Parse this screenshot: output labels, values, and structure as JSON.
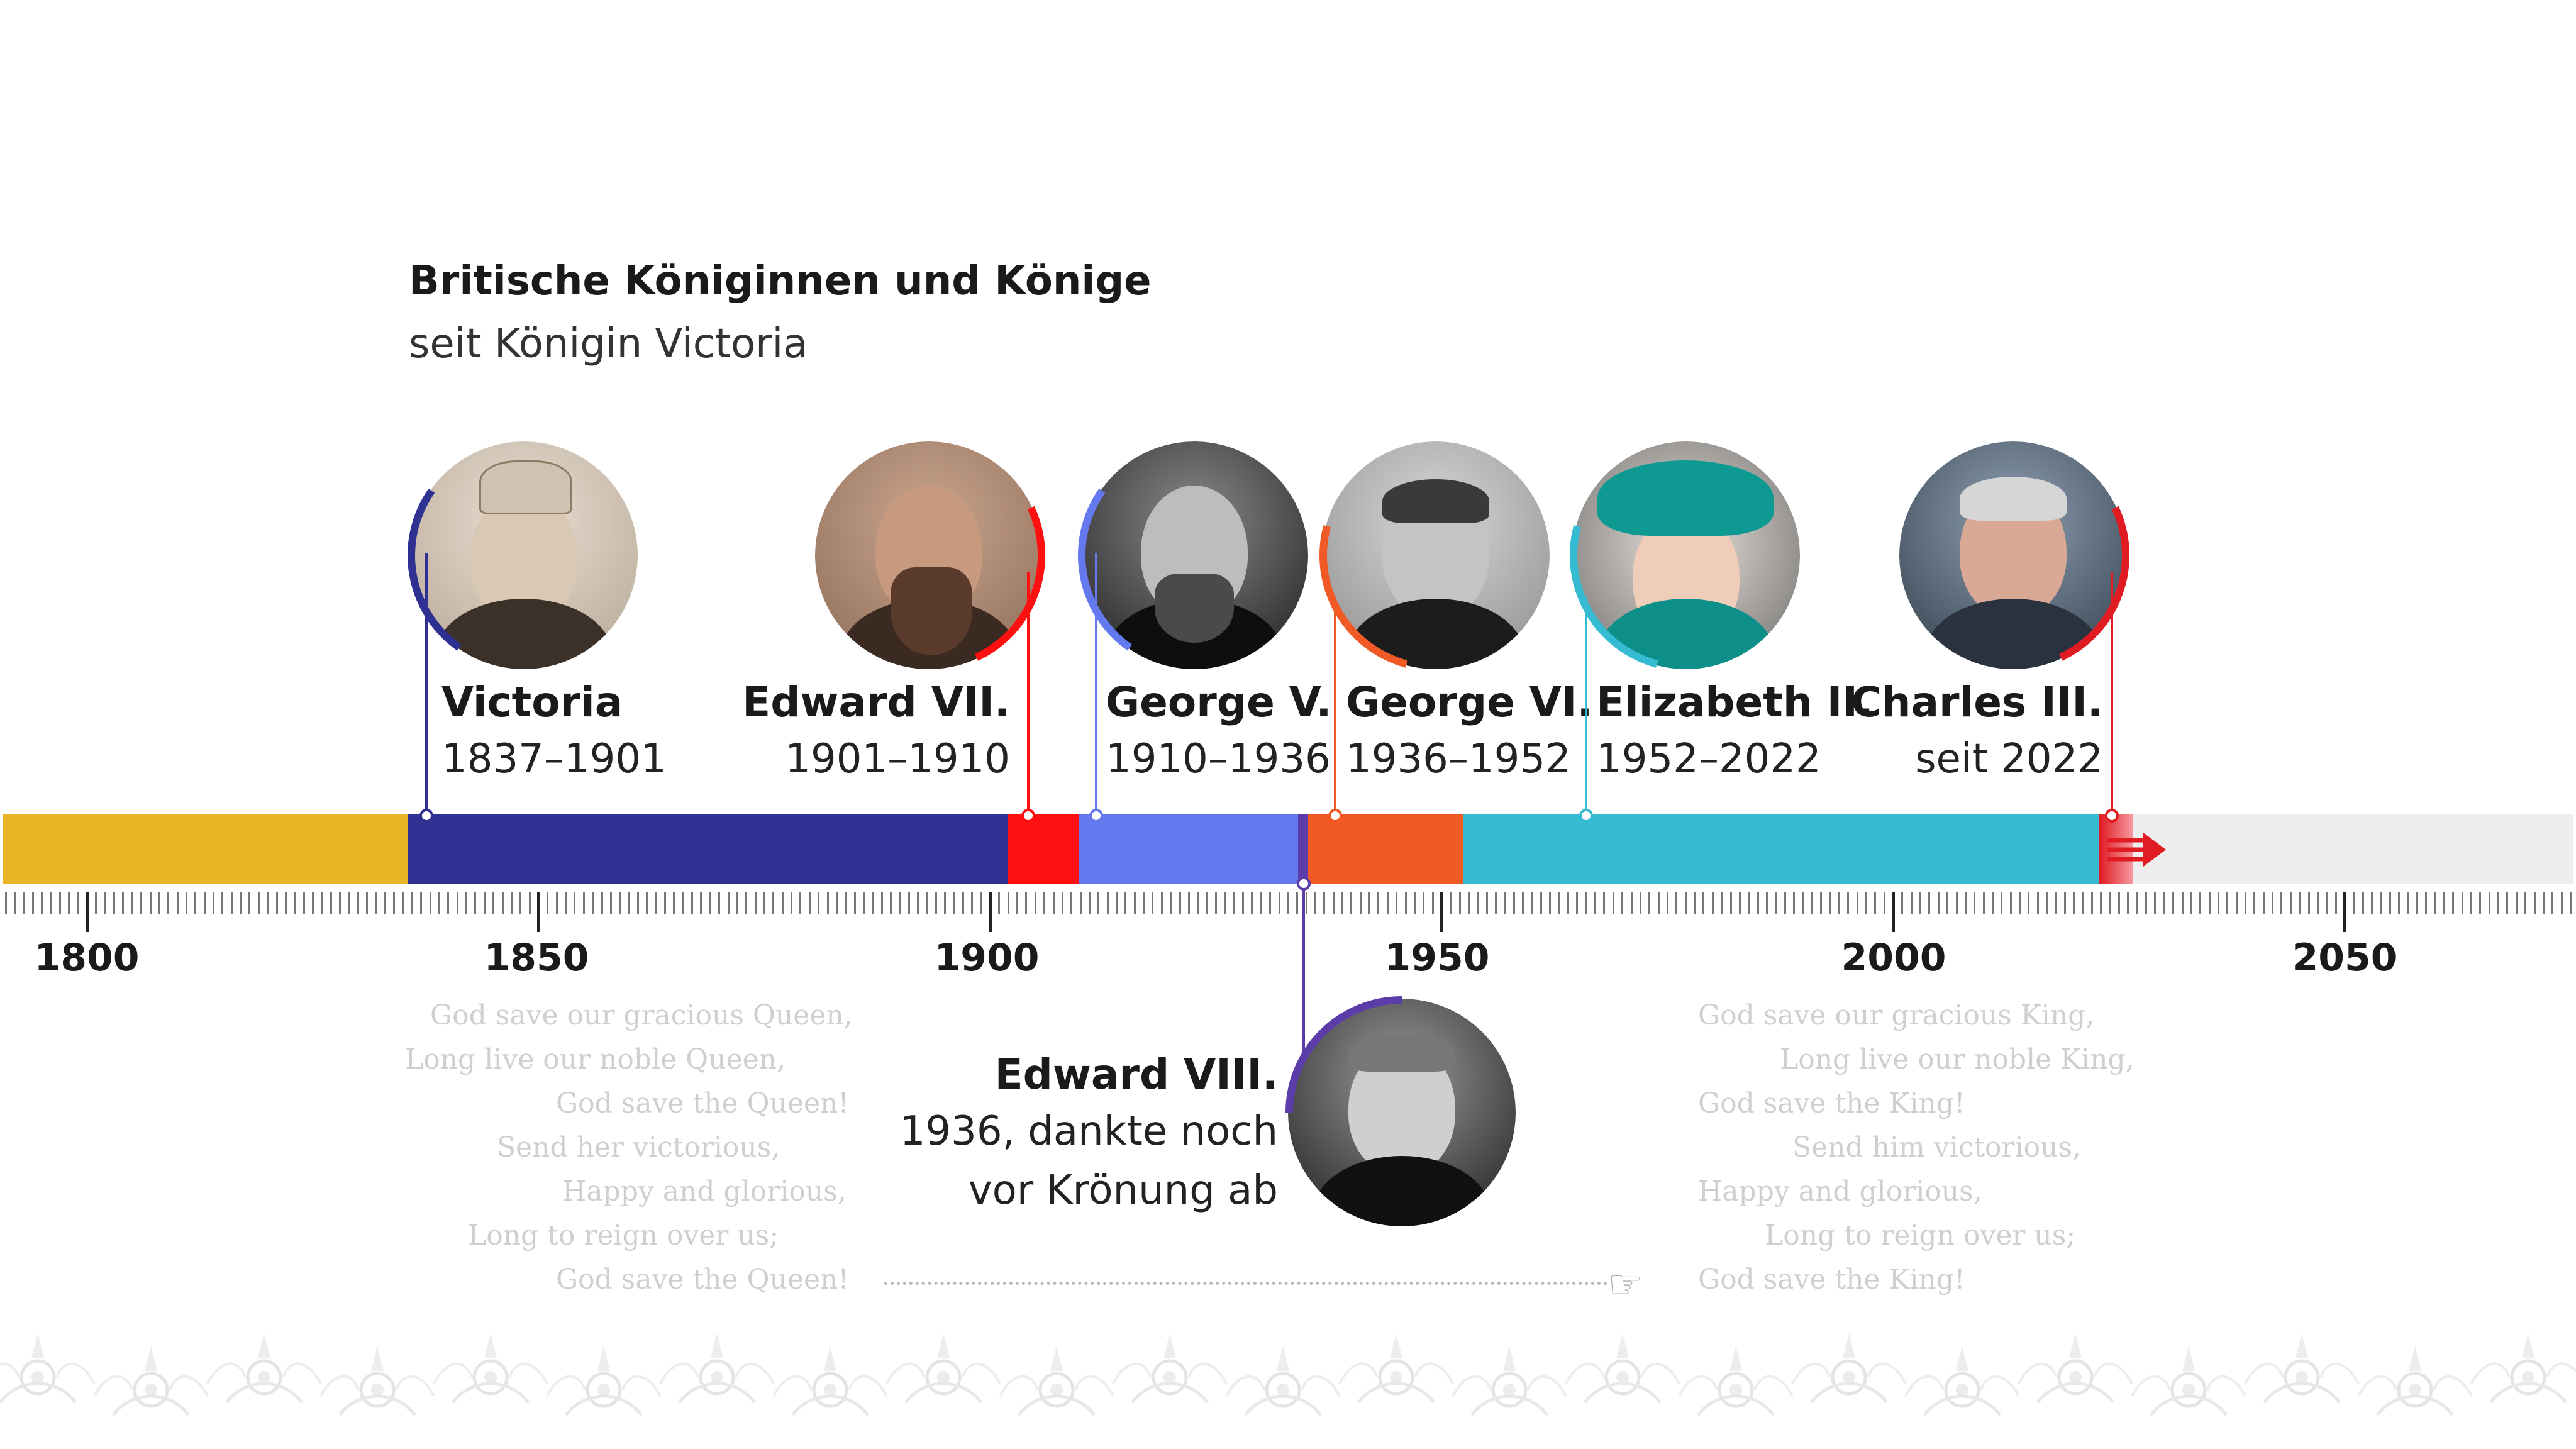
{
  "title": "Britische Königinnen und Könige",
  "subtitle": "seit Königin Victoria",
  "axis": {
    "labels": [
      "1800",
      "1850",
      "1900",
      "1950",
      "2000",
      "2050"
    ]
  },
  "colors": {
    "pre_victoria": "#E8B424",
    "victoria": "#2E3192",
    "edward7": "#FF1010",
    "george5": "#6479EE",
    "edward8": "#5B3CA8",
    "george6": "#F15A24",
    "elizabeth2": "#35BCD2",
    "charles3": "#E11B22",
    "future": "#EEEEEE"
  },
  "monarchs": [
    {
      "id": "victoria",
      "name": "Victoria",
      "years": "1837–1901"
    },
    {
      "id": "edward7",
      "name": "Edward VII.",
      "years": "1901–1910"
    },
    {
      "id": "george5",
      "name": "George V.",
      "years": "1910–1936"
    },
    {
      "id": "george6",
      "name": "George VI.",
      "years": "1936–1952"
    },
    {
      "id": "elizabeth2",
      "name": "Elizabeth II.",
      "years": "1952–2022"
    },
    {
      "id": "charles3",
      "name": "Charles III.",
      "years": "seit 2022"
    },
    {
      "id": "edward8",
      "name": "Edward VIII.",
      "years_line1": "1936, dankte noch",
      "years_line2": "vor Krönung ab"
    }
  ],
  "anthem_queen": [
    "God save our gracious Queen,",
    "Long live our noble Queen,",
    "God save the Queen!",
    "Send her victorious,",
    "Happy and glorious,",
    "Long to reign over us;",
    "God save the Queen!"
  ],
  "anthem_king": [
    "God save our gracious King,",
    "Long live our noble King,",
    "God save the King!",
    "Send him victorious,",
    "Happy and glorious,",
    "Long to reign over us;",
    "God save the King!"
  ],
  "icons": {
    "pointing_hand": "pointing-hand-icon",
    "future_arrow": "arrow-right-icon",
    "floral_border": "floral-ornament-icon"
  }
}
